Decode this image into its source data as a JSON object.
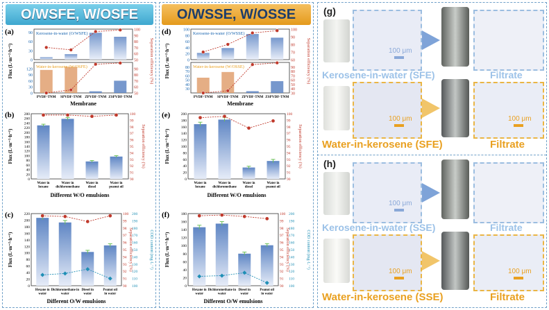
{
  "banners": {
    "left": "O/WSFE, W/OSFE",
    "middle": "O/WSSE, W/OSSE"
  },
  "colors": {
    "blue_axis": "#1a66b0",
    "red_axis": "#c0392b",
    "teal": "#1f8fb5",
    "orange": "#e9a020",
    "frame": "#6fa0c8"
  },
  "chart_data": [
    {
      "id": "a",
      "type": "bar",
      "panel_label": "(a)",
      "categories": [
        "PVDF-TNM",
        "SPVDF-TNM",
        "ZPVDF-TNM",
        "ZSPVDF-TNM"
      ],
      "xlabel": "Membrane",
      "ylabel": "Flux (L·m⁻²·h⁻¹)",
      "y2label": "Separation efficiency (%)",
      "top": {
        "annotation": "Kerosene-in-water (O/WSFE)",
        "ylim": [
          0,
          100
        ],
        "yticks": [
          0,
          30,
          60,
          90
        ],
        "flux": [
          8,
          18,
          88,
          75
        ],
        "efficiency": [
          70,
          66,
          96,
          98.6
        ],
        "y2lim": [
          50,
          100
        ],
        "y2ticks": [
          50,
          60,
          70,
          80,
          90,
          100
        ]
      },
      "bottom": {
        "annotation": "Water-in-kerosene (W/OSFE)",
        "ylim": [
          0,
          150
        ],
        "yticks": [
          0,
          30,
          60,
          90,
          120
        ],
        "flux": [
          113,
          128,
          8,
          60
        ],
        "efficiency": [
          50,
          55,
          97,
          99
        ],
        "y2lim": [
          50,
          100
        ],
        "y2ticks": [
          50,
          60,
          70,
          80,
          90
        ]
      }
    },
    {
      "id": "d",
      "type": "bar",
      "panel_label": "(d)",
      "categories": [
        "PVDF-TNM",
        "SPVDF-TNM",
        "ZPVDF-TNM",
        "ZSPVDF-TNM"
      ],
      "xlabel": "Membrane",
      "ylabel": "Flux (L·m⁻²·h⁻¹)",
      "y2label": "Separation efficiency (%)",
      "top": {
        "annotation": "Kerosene-in-water (O/WSSE)",
        "ylim": [
          0,
          100
        ],
        "yticks": [
          0,
          20,
          40,
          60,
          80,
          100
        ],
        "flux": [
          22,
          38,
          84,
          72
        ],
        "efficiency": [
          70,
          80,
          95,
          98
        ],
        "y2lim": [
          60,
          100
        ],
        "y2ticks": [
          60,
          70,
          80,
          90,
          100
        ]
      },
      "bottom": {
        "annotation": "Water-in-kerosene (W/OSSE)",
        "ylim": [
          20,
          90
        ],
        "yticks": [
          30,
          40,
          50,
          60,
          70,
          80
        ],
        "flux": [
          55,
          68,
          24,
          47
        ],
        "efficiency": [
          30,
          35,
          95,
          99
        ],
        "y2lim": [
          30,
          100
        ],
        "y2ticks": [
          30,
          40,
          50,
          60,
          70,
          80,
          90
        ]
      }
    },
    {
      "id": "b",
      "type": "bar",
      "panel_label": "(b)",
      "categories": [
        "Water in hexane",
        "Water in dichloromethane",
        "Water in diesel",
        "Water in peanut oil"
      ],
      "xlabel": "Different W/O emulsions",
      "ylabel": "Flux (L·m⁻²·h⁻¹)",
      "y2label": "Separation efficiency (%)",
      "ylim": [
        0,
        280
      ],
      "yticks": [
        0,
        20,
        40,
        60,
        80,
        100,
        120,
        140,
        160,
        180,
        200,
        220,
        240,
        260,
        280
      ],
      "flux": [
        230,
        258,
        75,
        96
      ],
      "flux_err": [
        5,
        6,
        4,
        4
      ],
      "y2lim": [
        90,
        100
      ],
      "y2ticks": [
        90,
        91,
        92,
        93,
        94,
        95,
        96,
        97,
        98,
        99,
        100
      ],
      "efficiency": [
        99.8,
        99.8,
        99.6,
        99.8
      ]
    },
    {
      "id": "e",
      "type": "bar",
      "panel_label": "(e)",
      "categories": [
        "Water in hexane",
        "Water in dichloromethane",
        "Water in diesel",
        "Water in peanut oil"
      ],
      "xlabel": "Different W/O emulsions",
      "ylabel": "Flux (L·m⁻²·h⁻¹)",
      "y2label": "Separation efficiency (%)",
      "ylim": [
        0,
        200
      ],
      "yticks": [
        0,
        20,
        40,
        60,
        80,
        100,
        120,
        140,
        160,
        180,
        200
      ],
      "flux": [
        168,
        182,
        35,
        55
      ],
      "flux_err": [
        6,
        6,
        4,
        5
      ],
      "y2lim": [
        90,
        100
      ],
      "y2ticks": [
        90,
        91,
        92,
        93,
        94,
        95,
        96,
        97,
        98,
        99,
        100
      ],
      "efficiency": [
        99.4,
        99.6,
        97.8,
        98.9
      ]
    },
    {
      "id": "c",
      "type": "bar",
      "panel_label": "(c)",
      "categories": [
        "Hexane in water",
        "Dichloromethane in water",
        "Diesel in water",
        "Peanut oil in water"
      ],
      "xlabel": "Different O/W emulsions",
      "ylabel": "Flux (L·m⁻²·h⁻¹)",
      "y2label": "Separation efficiency (%)",
      "y3label": "COD content (mg·L⁻¹)",
      "ylim": [
        0,
        220
      ],
      "yticks": [
        0,
        20,
        40,
        60,
        80,
        100,
        120,
        140,
        160,
        180,
        200,
        220
      ],
      "flux": [
        207,
        193,
        103,
        123
      ],
      "flux_err": [
        6,
        6,
        5,
        5
      ],
      "y2lim": [
        90,
        100
      ],
      "y2ticks": [
        90,
        91,
        92,
        93,
        94,
        95,
        96,
        97,
        98,
        99,
        100
      ],
      "efficiency": [
        99.7,
        99.6,
        98.9,
        99.7
      ],
      "y3lim": [
        100,
        200
      ],
      "y3ticks": [
        100,
        110,
        120,
        130,
        140,
        150,
        160,
        170,
        180,
        190,
        200
      ],
      "cod": [
        115,
        117,
        123,
        110
      ]
    },
    {
      "id": "f",
      "type": "bar",
      "panel_label": "(f)",
      "categories": [
        "Hexane in water",
        "Dichloromethane in water",
        "Diesel in water",
        "Peanut oil in water"
      ],
      "xlabel": "Different O/W emulsions",
      "ylabel": "Flux (L·m⁻²·h⁻¹)",
      "y2label": "Separation efficiency (%)",
      "y3label": "COD content (mg·L⁻¹)",
      "ylim": [
        0,
        180
      ],
      "yticks": [
        0,
        20,
        40,
        60,
        80,
        100,
        120,
        140,
        160,
        180
      ],
      "flux": [
        146,
        155,
        80,
        101
      ],
      "flux_err": [
        5,
        5,
        4,
        4
      ],
      "y2lim": [
        90,
        100
      ],
      "y2ticks": [
        90,
        91,
        92,
        93,
        94,
        95,
        96,
        97,
        98,
        99,
        100
      ],
      "efficiency": [
        99.7,
        99.8,
        99.6,
        99.3
      ],
      "y3lim": [
        100,
        200
      ],
      "y3ticks": [
        100,
        110,
        120,
        130,
        140,
        150,
        160,
        170,
        180,
        190,
        200
      ],
      "cod": [
        113,
        114,
        118,
        104
      ]
    }
  ],
  "photos": {
    "g": {
      "label": "(g)",
      "row1_caption": "Kerosene-in-water (SFE)",
      "row1_right": "Filtrate",
      "row2_caption": "Water-in-kerosene (SFE)",
      "row2_right": "Filtrate",
      "scale": "100 μm"
    },
    "h": {
      "label": "(h)",
      "row1_caption": "Kerosene-in-water (SSE)",
      "row1_right": "Filtrate",
      "row2_caption": "Water-in-kerosene (SSE)",
      "row2_right": "Filtrate",
      "scale": "100 μm"
    }
  }
}
